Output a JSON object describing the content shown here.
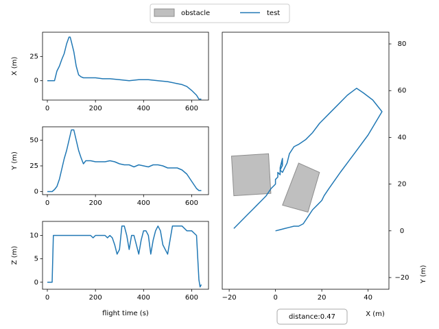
{
  "legend": {
    "placement": "top-center",
    "entries": [
      {
        "label": "obstacle",
        "kind": "patch",
        "color": "#bfbfbf",
        "edge": "#8c8c8c"
      },
      {
        "label": "test",
        "kind": "line",
        "color": "#1f77b4"
      }
    ]
  },
  "annotation": {
    "text": "distance:0.47"
  },
  "chart_data": [
    {
      "type": "line",
      "xlabel": "",
      "ylabel": "X (m)",
      "xlim": [
        -20,
        670
      ],
      "ylim": [
        -20,
        50
      ],
      "xticks": [
        0,
        200,
        400,
        600
      ],
      "yticks": [
        0,
        25
      ],
      "series": [
        {
          "name": "test",
          "color": "#1f77b4",
          "x": [
            0,
            20,
            30,
            40,
            50,
            60,
            70,
            80,
            90,
            95,
            100,
            110,
            120,
            130,
            140,
            150,
            160,
            180,
            200,
            230,
            260,
            300,
            340,
            380,
            420,
            460,
            500,
            540,
            560,
            580,
            600,
            620,
            630,
            640
          ],
          "y": [
            0,
            0,
            0,
            10,
            15,
            22,
            28,
            38,
            45,
            45,
            40,
            30,
            15,
            6,
            4,
            3,
            3,
            3,
            3,
            2,
            2,
            1,
            0,
            1,
            1,
            0,
            -1,
            -3,
            -4,
            -6,
            -10,
            -15,
            -19,
            -19
          ]
        }
      ]
    },
    {
      "type": "line",
      "xlabel": "",
      "ylabel": "Y (m)",
      "xlim": [
        -20,
        670
      ],
      "ylim": [
        -3,
        63
      ],
      "xticks": [
        0,
        200,
        400,
        600
      ],
      "yticks": [
        0,
        25,
        50
      ],
      "series": [
        {
          "name": "test",
          "color": "#1f77b4",
          "x": [
            0,
            20,
            30,
            40,
            50,
            60,
            70,
            80,
            90,
            100,
            110,
            120,
            130,
            140,
            150,
            160,
            180,
            200,
            220,
            240,
            260,
            280,
            300,
            320,
            340,
            360,
            380,
            400,
            420,
            440,
            460,
            480,
            500,
            520,
            540,
            560,
            580,
            600,
            620,
            630,
            640
          ],
          "y": [
            0,
            0,
            2,
            5,
            12,
            22,
            32,
            40,
            50,
            60,
            60,
            50,
            40,
            33,
            27,
            30,
            30,
            29,
            29,
            29,
            30,
            29,
            27,
            26,
            26,
            24,
            26,
            25,
            24,
            26,
            26,
            25,
            23,
            23,
            23,
            21,
            17,
            10,
            3,
            1,
            1
          ]
        }
      ]
    },
    {
      "type": "line",
      "xlabel": "flight time (s)",
      "ylabel": "Z (m)",
      "xlim": [
        -20,
        670
      ],
      "ylim": [
        -1.5,
        13
      ],
      "xticks": [
        0,
        200,
        400,
        600
      ],
      "yticks": [
        0,
        5,
        10
      ],
      "series": [
        {
          "name": "test",
          "color": "#1f77b4",
          "x": [
            0,
            15,
            20,
            25,
            30,
            40,
            50,
            60,
            80,
            100,
            120,
            140,
            160,
            180,
            190,
            200,
            210,
            220,
            230,
            240,
            250,
            260,
            270,
            280,
            290,
            300,
            310,
            320,
            330,
            340,
            350,
            360,
            370,
            380,
            390,
            400,
            410,
            420,
            430,
            440,
            450,
            460,
            470,
            480,
            490,
            500,
            510,
            520,
            530,
            540,
            560,
            580,
            600,
            620,
            630,
            635,
            640
          ],
          "y": [
            0,
            0,
            0,
            10,
            10,
            10,
            10,
            10,
            10,
            10,
            10,
            10,
            10,
            10,
            9.5,
            10,
            10,
            10,
            10,
            10,
            9.5,
            10,
            9.5,
            8,
            6,
            7,
            12,
            12,
            10,
            7,
            10,
            10,
            8,
            6,
            9,
            11,
            11,
            10,
            6,
            9,
            11,
            12,
            11,
            8,
            7,
            6,
            9,
            12,
            12,
            12,
            12,
            11,
            11,
            10,
            0.5,
            -1,
            -0.5
          ]
        }
      ]
    },
    {
      "type": "line",
      "xlabel": "X (m)",
      "ylabel": "Y (m)",
      "xlim": [
        -23,
        49
      ],
      "ylim": [
        -25,
        85
      ],
      "xticks": [
        -20,
        0,
        20,
        40
      ],
      "yticks": [
        -20,
        0,
        20,
        40,
        60,
        80
      ],
      "obstacles": [
        [
          [
            -19,
            32
          ],
          [
            -3,
            33
          ],
          [
            -2,
            16
          ],
          [
            -18,
            15
          ]
        ],
        [
          [
            10,
            29
          ],
          [
            19,
            25
          ],
          [
            14,
            8
          ],
          [
            3,
            11
          ]
        ]
      ],
      "series": [
        {
          "name": "test",
          "color": "#1f77b4",
          "x": [
            -18,
            -15,
            -12,
            -10,
            -8,
            -6,
            -4,
            -2,
            0,
            0,
            1,
            1,
            2,
            2,
            3,
            2,
            3,
            3,
            2,
            3,
            3,
            4,
            5,
            6,
            8,
            10,
            13,
            16,
            19,
            23,
            27,
            31,
            35,
            38,
            42,
            46,
            40,
            34,
            28,
            23,
            21,
            20,
            18,
            16,
            14,
            12,
            10,
            8,
            6,
            4,
            2,
            0
          ],
          "y": [
            1,
            4,
            7,
            9,
            11,
            13,
            15,
            18,
            20,
            22,
            23,
            25,
            24,
            27,
            30,
            27,
            31,
            28,
            26,
            25,
            25,
            27,
            29,
            33,
            36,
            37,
            39,
            42,
            46,
            50,
            54,
            58,
            61,
            59,
            56,
            51,
            41,
            33,
            25,
            18,
            15,
            13,
            11,
            9,
            6,
            3,
            2,
            2,
            1.5,
            1,
            0.5,
            0
          ]
        }
      ]
    }
  ]
}
